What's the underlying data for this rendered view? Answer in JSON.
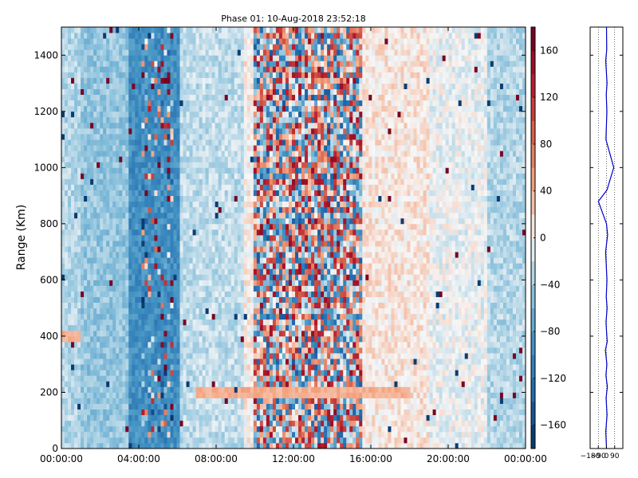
{
  "chart_data": [
    {
      "type": "heatmap",
      "title": "Phase 01: 10-Aug-2018 23:52:18",
      "xlabel": "",
      "ylabel": "Range (Km)",
      "x_range": [
        "00:00:00",
        "24:00:00"
      ],
      "ylim": [
        0,
        1500
      ],
      "x_tick_labels": [
        "00:00:00",
        "04:00:00",
        "08:00:00",
        "12:00:00",
        "16:00:00",
        "20:00:00",
        "00:00:00"
      ],
      "y_ticks": [
        0,
        200,
        400,
        600,
        800,
        1000,
        1200,
        1400
      ],
      "colorbar": {
        "colormap": "RdBu_r",
        "range": [
          -180,
          180
        ],
        "ticks": [
          160,
          120,
          80,
          40,
          0,
          -40,
          -80,
          -120,
          -160
        ]
      },
      "features": [
        {
          "description": "strong blue band",
          "time_range": [
            "04:00:00",
            "06:00:00"
          ],
          "value_approx": -100
        },
        {
          "description": "high-variability noise band",
          "time_range": [
            "10:00:00",
            "15:30:00"
          ]
        },
        {
          "description": "warm layer near 200 km",
          "range_km": 200,
          "time_range": [
            "07:00:00",
            "18:00:00"
          ],
          "value_approx": 40
        },
        {
          "description": "warm layer near 400 km",
          "range_km": 400,
          "time_range": [
            "00:00:00",
            "01:00:00"
          ],
          "value_approx": 40
        }
      ],
      "grid": false
    },
    {
      "type": "line",
      "title": "",
      "xlim": [
        -180,
        180
      ],
      "x_tick_labels": [
        "-180",
        "-90",
        "0",
        "90"
      ],
      "ylim": [
        0,
        1500
      ],
      "series": [
        {
          "color": "#0000cc",
          "x": [
            0,
            -8,
            6,
            -4,
            10,
            -6,
            4,
            -12,
            8,
            0,
            -5,
            7,
            -3,
            5,
            -10,
            12,
            0,
            -90,
            5,
            80,
            -6,
            4,
            -3,
            6,
            -9,
            3,
            0
          ],
          "y": [
            0,
            60,
            120,
            180,
            220,
            260,
            300,
            350,
            380,
            420,
            450,
            500,
            540,
            600,
            700,
            760,
            800,
            880,
            920,
            1000,
            1100,
            1200,
            1260,
            1300,
            1380,
            1420,
            1500
          ]
        }
      ],
      "grid": "vertical dotted"
    }
  ]
}
